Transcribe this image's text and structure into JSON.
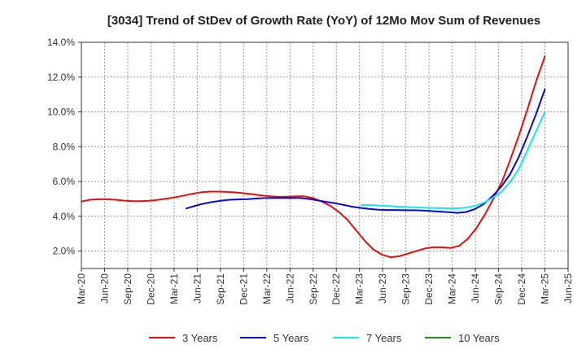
{
  "chart_data": {
    "type": "line",
    "title": "[3034]  Trend of StDev of Growth Rate (YoY) of 12Mo Mov Sum of Revenues",
    "xlabel": "",
    "ylabel": "",
    "ylim": [
      1.0,
      14.0
    ],
    "y_ticks": [
      2.0,
      4.0,
      6.0,
      8.0,
      10.0,
      12.0,
      14.0
    ],
    "y_tick_labels": [
      "2.0%",
      "4.0%",
      "6.0%",
      "8.0%",
      "10.0%",
      "12.0%",
      "14.0%"
    ],
    "x_tick_labels": [
      "Mar-20",
      "Jun-20",
      "Sep-20",
      "Dec-20",
      "Mar-21",
      "Jun-21",
      "Sep-21",
      "Dec-21",
      "Mar-22",
      "Jun-22",
      "Sep-22",
      "Dec-22",
      "Mar-23",
      "Jun-23",
      "Sep-23",
      "Dec-23",
      "Mar-24",
      "Jun-24",
      "Sep-24",
      "Dec-24",
      "Mar-25",
      "Jun-25"
    ],
    "grid": true,
    "legend_position": "bottom",
    "series": [
      {
        "name": "3 Years",
        "color": "#e01010",
        "values": [
          4.85,
          4.95,
          4.98,
          4.98,
          4.95,
          4.9,
          4.87,
          4.87,
          4.9,
          4.95,
          5.02,
          5.1,
          5.2,
          5.3,
          5.38,
          5.42,
          5.42,
          5.4,
          5.37,
          5.32,
          5.27,
          5.2,
          5.15,
          5.12,
          5.13,
          5.15,
          5.15,
          5.05,
          4.85,
          4.6,
          4.25,
          3.8,
          3.2,
          2.6,
          2.1,
          1.8,
          1.65,
          1.7,
          1.85,
          2.0,
          2.15,
          2.22,
          2.22,
          2.18,
          2.3,
          2.7,
          3.3,
          4.1,
          5.0,
          6.0,
          7.3,
          8.7,
          10.2,
          11.8,
          13.2
        ]
      },
      {
        "name": "5 Years",
        "color": "#0a0ac8",
        "values": [
          null,
          null,
          null,
          null,
          null,
          null,
          null,
          null,
          null,
          null,
          null,
          null,
          4.45,
          4.6,
          4.73,
          4.83,
          4.9,
          4.95,
          4.97,
          4.99,
          5.02,
          5.05,
          5.05,
          5.05,
          5.05,
          5.05,
          5.0,
          4.92,
          4.83,
          4.75,
          4.65,
          4.55,
          4.48,
          4.42,
          4.38,
          4.36,
          4.36,
          4.35,
          4.35,
          4.33,
          4.3,
          4.27,
          4.24,
          4.2,
          4.25,
          4.42,
          4.7,
          5.15,
          5.7,
          6.4,
          7.4,
          8.6,
          9.9,
          11.3
        ]
      },
      {
        "name": "7 Years",
        "color": "#16e6f0",
        "values": [
          null,
          null,
          null,
          null,
          null,
          null,
          null,
          null,
          null,
          null,
          null,
          null,
          null,
          null,
          null,
          null,
          null,
          null,
          null,
          null,
          null,
          null,
          null,
          null,
          null,
          null,
          null,
          null,
          null,
          null,
          null,
          null,
          4.65,
          4.65,
          4.62,
          4.6,
          4.56,
          4.54,
          4.52,
          4.5,
          4.48,
          4.47,
          4.46,
          4.46,
          4.5,
          4.6,
          4.78,
          5.05,
          5.4,
          5.95,
          6.7,
          7.8,
          8.9,
          10.0
        ]
      },
      {
        "name": "10 Years",
        "color": "#228b22",
        "values": []
      }
    ]
  }
}
